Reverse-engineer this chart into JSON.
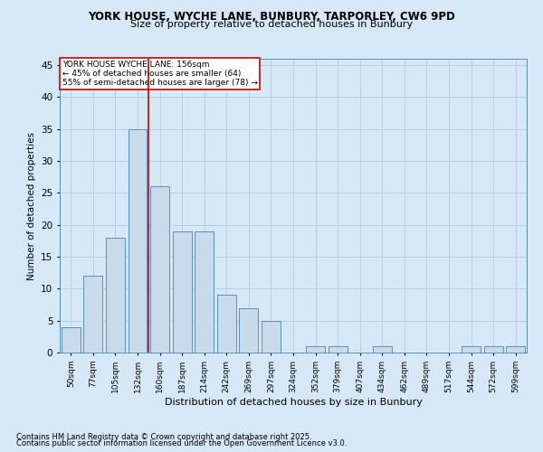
{
  "title1": "YORK HOUSE, WYCHE LANE, BUNBURY, TARPORLEY, CW6 9PD",
  "title2": "Size of property relative to detached houses in Bunbury",
  "xlabel": "Distribution of detached houses by size in Bunbury",
  "ylabel": "Number of detached properties",
  "categories": [
    "50sqm",
    "77sqm",
    "105sqm",
    "132sqm",
    "160sqm",
    "187sqm",
    "214sqm",
    "242sqm",
    "269sqm",
    "297sqm",
    "324sqm",
    "352sqm",
    "379sqm",
    "407sqm",
    "434sqm",
    "462sqm",
    "489sqm",
    "517sqm",
    "544sqm",
    "572sqm",
    "599sqm"
  ],
  "values": [
    4,
    12,
    18,
    35,
    26,
    19,
    19,
    9,
    7,
    5,
    0,
    1,
    1,
    0,
    1,
    0,
    0,
    0,
    1,
    1,
    1
  ],
  "bar_color": "#c9daea",
  "bar_edge_color": "#5a8fbf",
  "grid_color": "#b8cfe0",
  "bg_color": "#d6e8f5",
  "vline_x": 3.5,
  "vline_color": "#cc0000",
  "annotation_text": "YORK HOUSE WYCHE LANE: 156sqm\n← 45% of detached houses are smaller (64)\n55% of semi-detached houses are larger (78) →",
  "annotation_box_color": "#ffffff",
  "annotation_box_edge": "#cc0000",
  "footer1": "Contains HM Land Registry data © Crown copyright and database right 2025.",
  "footer2": "Contains public sector information licensed under the Open Government Licence v3.0.",
  "ylim": [
    0,
    46
  ],
  "yticks": [
    0,
    5,
    10,
    15,
    20,
    25,
    30,
    35,
    40,
    45
  ]
}
